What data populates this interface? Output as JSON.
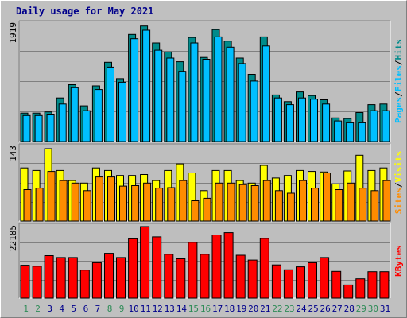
{
  "title": "Daily usage for May 2021",
  "colors": {
    "pages": "#2e8b57",
    "files": "#00bfff",
    "hits": "#008b8b",
    "sites": "#ff8c00",
    "visits": "#ffff00",
    "kbytes": "#ff0000",
    "weekend_label": "#2e8b57",
    "weekday_label": "#00008b",
    "panel_bg": "#bebebe"
  },
  "chart_data": [
    {
      "type": "bar",
      "panel": "hits-files-pages",
      "max_label": "1919",
      "ymax": 1919,
      "legend": [
        "Pages",
        "Files",
        "Hits"
      ],
      "categories": [
        "1",
        "2",
        "3",
        "4",
        "5",
        "6",
        "7",
        "8",
        "9",
        "10",
        "11",
        "12",
        "13",
        "14",
        "15",
        "16",
        "17",
        "18",
        "19",
        "20",
        "21",
        "22",
        "23",
        "24",
        "25",
        "26",
        "27",
        "28",
        "29",
        "30",
        "31"
      ],
      "series": [
        {
          "name": "Hits",
          "values": [
            470,
            470,
            490,
            720,
            940,
            590,
            920,
            1310,
            1040,
            1770,
            1910,
            1630,
            1480,
            1320,
            1720,
            1390,
            1850,
            1660,
            1380,
            1110,
            1730,
            770,
            660,
            820,
            760,
            690,
            390,
            380,
            480,
            610,
            620
          ]
        },
        {
          "name": "Files",
          "values": [
            430,
            430,
            440,
            620,
            890,
            510,
            860,
            1230,
            980,
            1700,
            1840,
            1510,
            1380,
            1160,
            1630,
            1360,
            1730,
            1560,
            1290,
            1000,
            1580,
            720,
            610,
            720,
            700,
            620,
            340,
            310,
            310,
            510,
            510
          ]
        }
      ]
    },
    {
      "type": "bar",
      "panel": "visits-sites",
      "max_label": "143",
      "ymax": 143,
      "legend": [
        "Sites",
        "Visits"
      ],
      "categories": [
        "1",
        "2",
        "3",
        "4",
        "5",
        "6",
        "7",
        "8",
        "9",
        "10",
        "11",
        "12",
        "13",
        "14",
        "15",
        "16",
        "17",
        "18",
        "19",
        "20",
        "21",
        "22",
        "23",
        "24",
        "25",
        "26",
        "27",
        "28",
        "29",
        "30",
        "31"
      ],
      "series": [
        {
          "name": "Visits",
          "values": [
            105,
            100,
            143,
            100,
            80,
            75,
            105,
            100,
            90,
            90,
            92,
            80,
            100,
            113,
            95,
            60,
            100,
            100,
            80,
            75,
            110,
            85,
            90,
            100,
            98,
            97,
            73,
            99,
            130,
            100,
            105
          ]
        },
        {
          "name": "Sites",
          "values": [
            62,
            65,
            98,
            80,
            75,
            60,
            87,
            87,
            69,
            70,
            75,
            65,
            66,
            80,
            40,
            45,
            75,
            75,
            72,
            70,
            80,
            60,
            55,
            80,
            65,
            95,
            62,
            75,
            65,
            60,
            80
          ]
        }
      ]
    },
    {
      "type": "bar",
      "panel": "kbytes",
      "max_label": "22185",
      "ymax": 22185,
      "legend": [
        "KBytes"
      ],
      "categories": [
        "1",
        "2",
        "3",
        "4",
        "5",
        "6",
        "7",
        "8",
        "9",
        "10",
        "11",
        "12",
        "13",
        "14",
        "15",
        "16",
        "17",
        "18",
        "19",
        "20",
        "21",
        "22",
        "23",
        "24",
        "25",
        "26",
        "27",
        "28",
        "29",
        "30",
        "31"
      ],
      "series": [
        {
          "name": "KBytes",
          "values": [
            10200,
            9900,
            13200,
            12600,
            12600,
            8700,
            11000,
            13900,
            12600,
            18400,
            22185,
            19000,
            13600,
            12200,
            17300,
            13600,
            19600,
            20300,
            13300,
            11800,
            18500,
            10300,
            8800,
            9700,
            11000,
            12600,
            8300,
            4100,
            6000,
            8200,
            8200
          ]
        }
      ]
    }
  ],
  "weekend_days": [
    "1",
    "2",
    "8",
    "9",
    "15",
    "16",
    "22",
    "23",
    "29",
    "30"
  ]
}
